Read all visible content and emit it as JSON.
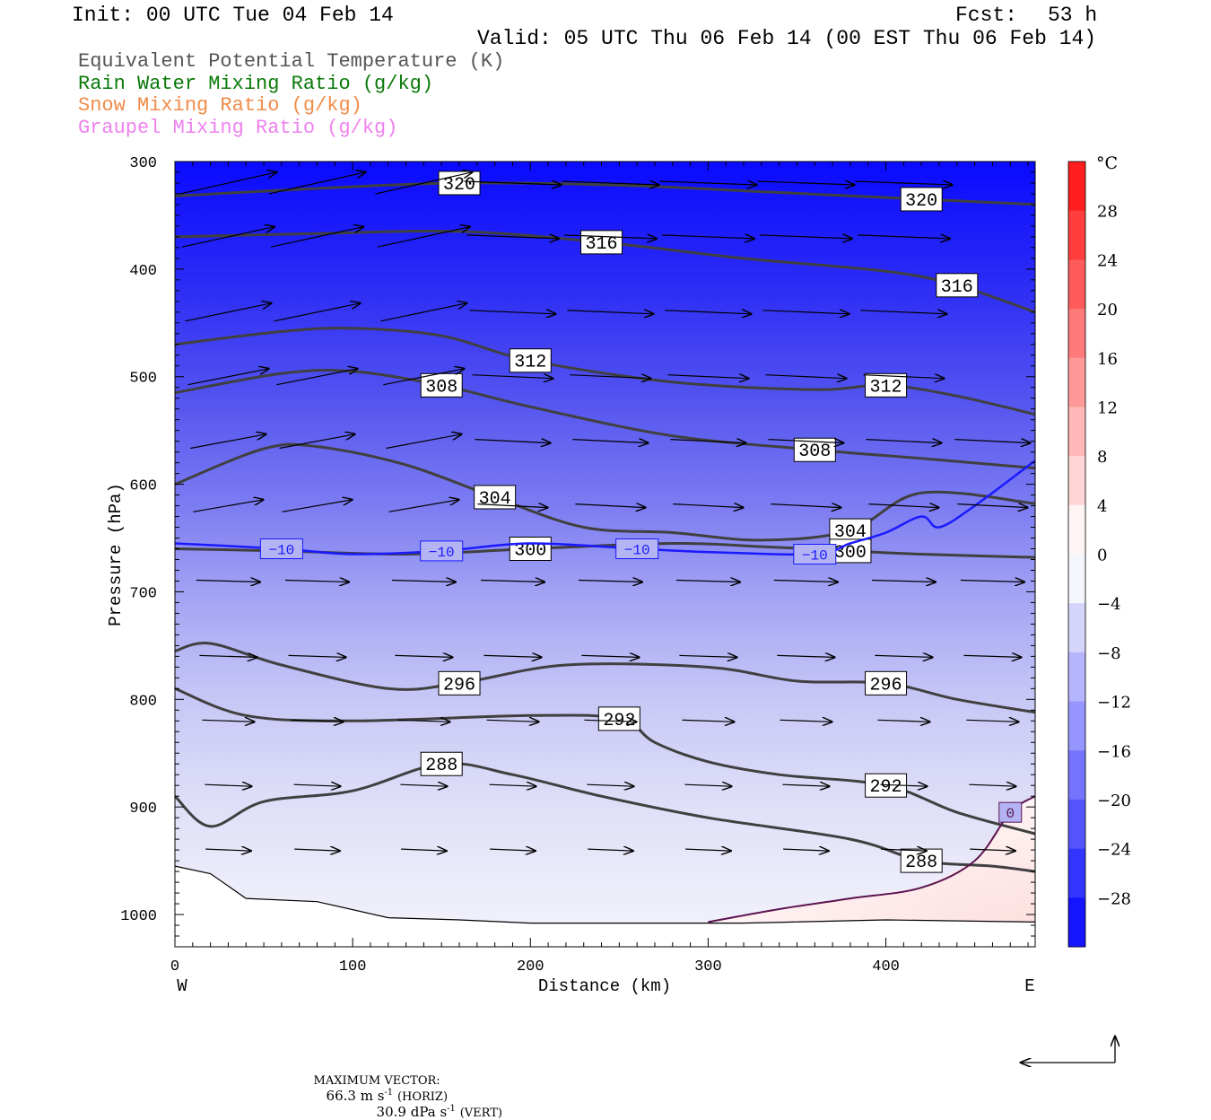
{
  "header": {
    "init": "Init: 00 UTC Tue 04 Feb 14",
    "fcst_label": "Fcst:",
    "fcst_value": "53 h",
    "valid": "Valid: 05 UTC Thu 06 Feb 14 (00 EST Thu 06 Feb 14)"
  },
  "legend": [
    {
      "label": "Equivalent Potential Temperature (K)",
      "color": "#555555"
    },
    {
      "label": "Rain Water Mixing Ratio (g/kg)",
      "color": "#0a7a0a"
    },
    {
      "label": "Snow Mixing Ratio (g/kg)",
      "color": "#f08c4a"
    },
    {
      "label": "Graupel Mixing Ratio (g/kg)",
      "color": "#ee82ee"
    }
  ],
  "footer": {
    "max_vector_label": "MAXIMUM VECTOR:",
    "horiz_value": "66.3 m s",
    "horiz_unit": "(HORIZ)",
    "vert_value": "30.9 dPa s",
    "vert_unit": "(VERT)",
    "exponent": "-1"
  },
  "chart_data": {
    "type": "heatmap",
    "title": "",
    "xlabel": "Distance (km)",
    "ylabel": "Pressure (hPa)",
    "xlim": [
      0,
      484
    ],
    "ylim": [
      300,
      1030
    ],
    "y_scale": "linear (inverted, pressure)",
    "x_ticks": [
      0,
      100,
      200,
      300,
      400
    ],
    "y_ticks": [
      300,
      400,
      500,
      600,
      700,
      800,
      900,
      1000
    ],
    "x_end_labels": {
      "left": "W",
      "right": "E"
    },
    "colorbar": {
      "unit": "°C",
      "levels": [
        28,
        24,
        20,
        16,
        12,
        8,
        4,
        0,
        -4,
        -8,
        -12,
        -16,
        -20,
        -24,
        -28
      ],
      "label_text": [
        "28",
        "24",
        "20",
        "16",
        "12",
        "8",
        "4",
        "0",
        "−4",
        "−8",
        "−12",
        "−16",
        "−20",
        "−24",
        "−28"
      ],
      "warm_color": "#ff2020",
      "cold_color": "#1010ff"
    },
    "theta_e_contours": [
      {
        "value": 320,
        "label": "320",
        "points": [
          [
            0,
            332
          ],
          [
            80,
            325
          ],
          [
            160,
            320
          ],
          [
            250,
            322
          ],
          [
            330,
            328
          ],
          [
            420,
            335
          ],
          [
            484,
            340
          ]
        ]
      },
      {
        "value": 316,
        "label": "316",
        "points": [
          [
            0,
            370
          ],
          [
            80,
            367
          ],
          [
            160,
            365
          ],
          [
            240,
            375
          ],
          [
            320,
            390
          ],
          [
            400,
            402
          ],
          [
            440,
            415
          ],
          [
            484,
            440
          ]
        ]
      },
      {
        "value": 312,
        "label": "312",
        "points": [
          [
            0,
            470
          ],
          [
            60,
            458
          ],
          [
            100,
            455
          ],
          [
            150,
            462
          ],
          [
            200,
            485
          ],
          [
            280,
            505
          ],
          [
            360,
            512
          ],
          [
            400,
            508
          ],
          [
            440,
            518
          ],
          [
            484,
            535
          ]
        ]
      },
      {
        "value": 308,
        "label": "308",
        "points": [
          [
            0,
            515
          ],
          [
            60,
            497
          ],
          [
            100,
            495
          ],
          [
            150,
            508
          ],
          [
            200,
            528
          ],
          [
            280,
            555
          ],
          [
            360,
            568
          ],
          [
            420,
            576
          ],
          [
            484,
            585
          ]
        ]
      },
      {
        "value": 304,
        "label": "304",
        "points": [
          [
            0,
            600
          ],
          [
            50,
            567
          ],
          [
            80,
            565
          ],
          [
            130,
            582
          ],
          [
            180,
            612
          ],
          [
            230,
            640
          ],
          [
            280,
            645
          ],
          [
            330,
            652
          ],
          [
            380,
            643
          ],
          [
            420,
            608
          ],
          [
            484,
            618
          ]
        ]
      },
      {
        "value": 300,
        "label": "300",
        "points": [
          [
            0,
            660
          ],
          [
            60,
            662
          ],
          [
            130,
            665
          ],
          [
            200,
            660
          ],
          [
            280,
            655
          ],
          [
            330,
            658
          ],
          [
            380,
            662
          ],
          [
            420,
            665
          ],
          [
            484,
            668
          ]
        ]
      },
      {
        "value": 296,
        "label": "296",
        "points": [
          [
            0,
            755
          ],
          [
            20,
            748
          ],
          [
            60,
            768
          ],
          [
            120,
            790
          ],
          [
            160,
            785
          ],
          [
            220,
            768
          ],
          [
            300,
            770
          ],
          [
            350,
            783
          ],
          [
            400,
            785
          ],
          [
            440,
            800
          ],
          [
            484,
            812
          ]
        ]
      },
      {
        "value": 292,
        "label": "292",
        "points": [
          [
            0,
            790
          ],
          [
            40,
            815
          ],
          [
            100,
            820
          ],
          [
            200,
            815
          ],
          [
            250,
            818
          ],
          [
            270,
            840
          ],
          [
            300,
            858
          ],
          [
            340,
            870
          ],
          [
            400,
            880
          ],
          [
            440,
            905
          ],
          [
            484,
            925
          ]
        ]
      },
      {
        "value": 288,
        "label": "288",
        "points": [
          [
            0,
            890
          ],
          [
            20,
            918
          ],
          [
            50,
            895
          ],
          [
            100,
            885
          ],
          [
            150,
            860
          ],
          [
            190,
            870
          ],
          [
            240,
            890
          ],
          [
            300,
            910
          ],
          [
            380,
            930
          ],
          [
            420,
            950
          ],
          [
            460,
            955
          ],
          [
            484,
            960
          ]
        ]
      }
    ],
    "temperature_contours": [
      {
        "value": -10,
        "label": "−10",
        "color": "#1a1aff",
        "points": [
          [
            0,
            655
          ],
          [
            60,
            660
          ],
          [
            100,
            665
          ],
          [
            150,
            662
          ],
          [
            200,
            655
          ],
          [
            260,
            660
          ],
          [
            300,
            663
          ],
          [
            360,
            665
          ],
          [
            380,
            655
          ],
          [
            400,
            645
          ],
          [
            420,
            630
          ],
          [
            430,
            640
          ],
          [
            450,
            620
          ],
          [
            484,
            578
          ]
        ]
      },
      {
        "value": 0,
        "label": "0",
        "color": "#5a1450",
        "points": [
          [
            300,
            1007
          ],
          [
            340,
            995
          ],
          [
            380,
            985
          ],
          [
            420,
            975
          ],
          [
            450,
            950
          ],
          [
            470,
            905
          ],
          [
            484,
            890
          ]
        ]
      }
    ],
    "terrain_pressure_hpa": [
      [
        0,
        955
      ],
      [
        20,
        962
      ],
      [
        40,
        985
      ],
      [
        80,
        988
      ],
      [
        120,
        1003
      ],
      [
        160,
        1005
      ],
      [
        200,
        1008
      ],
      [
        260,
        1008
      ],
      [
        320,
        1008
      ],
      [
        400,
        1005
      ],
      [
        484,
        1007
      ]
    ],
    "wind_vectors_note": "cross-section wind vectors (horizontal m/s, vertical dPa/s)"
  }
}
